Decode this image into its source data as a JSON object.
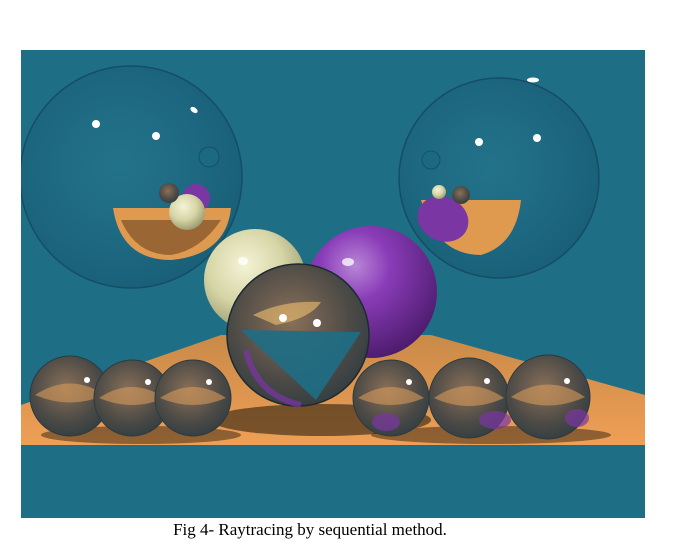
{
  "figure": {
    "caption": "Fig 4- Raytracing by sequential method."
  },
  "scene": {
    "background_color": "#1e6e86",
    "floor_color": "#e09a50",
    "purple_sphere_color": "#7a36a2",
    "cream_sphere_color": "#d9d8a8",
    "glass_sphere_tint": "#5a4a3a"
  }
}
